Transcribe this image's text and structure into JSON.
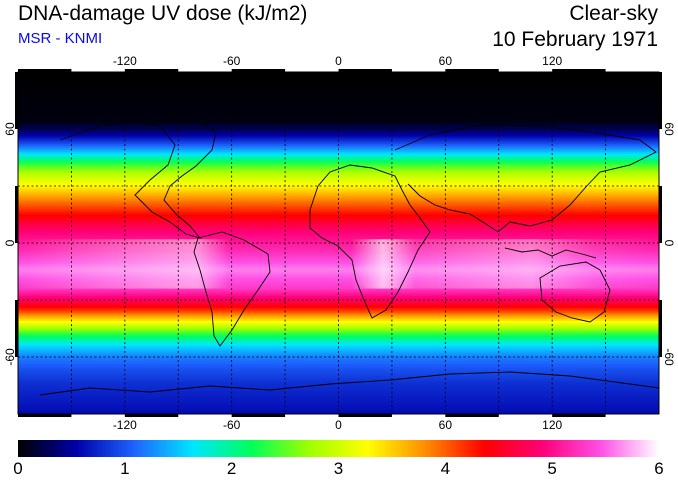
{
  "header": {
    "title": "DNA-damage UV dose (kJ/m2)",
    "source": "MSR - KNMI",
    "sky_condition": "Clear-sky",
    "date": "10 February 1971"
  },
  "colors": {
    "source_text": "#0a0ae6",
    "frame": "#000000",
    "gridline": "#000000",
    "coastline": "#000000"
  },
  "map": {
    "projection": "equirectangular",
    "lon_range": [
      -180,
      180
    ],
    "lat_range": [
      -90,
      90
    ],
    "lon_ticks": [
      -120,
      -60,
      0,
      60,
      120
    ],
    "lat_ticks": [
      60,
      0,
      -60
    ],
    "lon_tick_labels": [
      "-120",
      "-60",
      "0",
      "60",
      "120"
    ],
    "lat_tick_labels": [
      "60",
      "0",
      "-60"
    ],
    "gridline_style": "dotted",
    "gridline_spacing_deg": 30,
    "field": "clear-sky DNA-damage UV daily dose, highest near 10-30S, near zero in the northern high latitudes"
  },
  "colorbar": {
    "min": 0,
    "max": 6,
    "tick_labels": [
      "0",
      "1",
      "2",
      "3",
      "4",
      "5",
      "6"
    ],
    "palette": [
      "#000000",
      "#0000aa",
      "#1e64ff",
      "#00e6ff",
      "#00ff5a",
      "#a0ff00",
      "#ffff00",
      "#ff8c00",
      "#ff0000",
      "#ff0078",
      "#ff50e6",
      "#ffffff"
    ]
  }
}
